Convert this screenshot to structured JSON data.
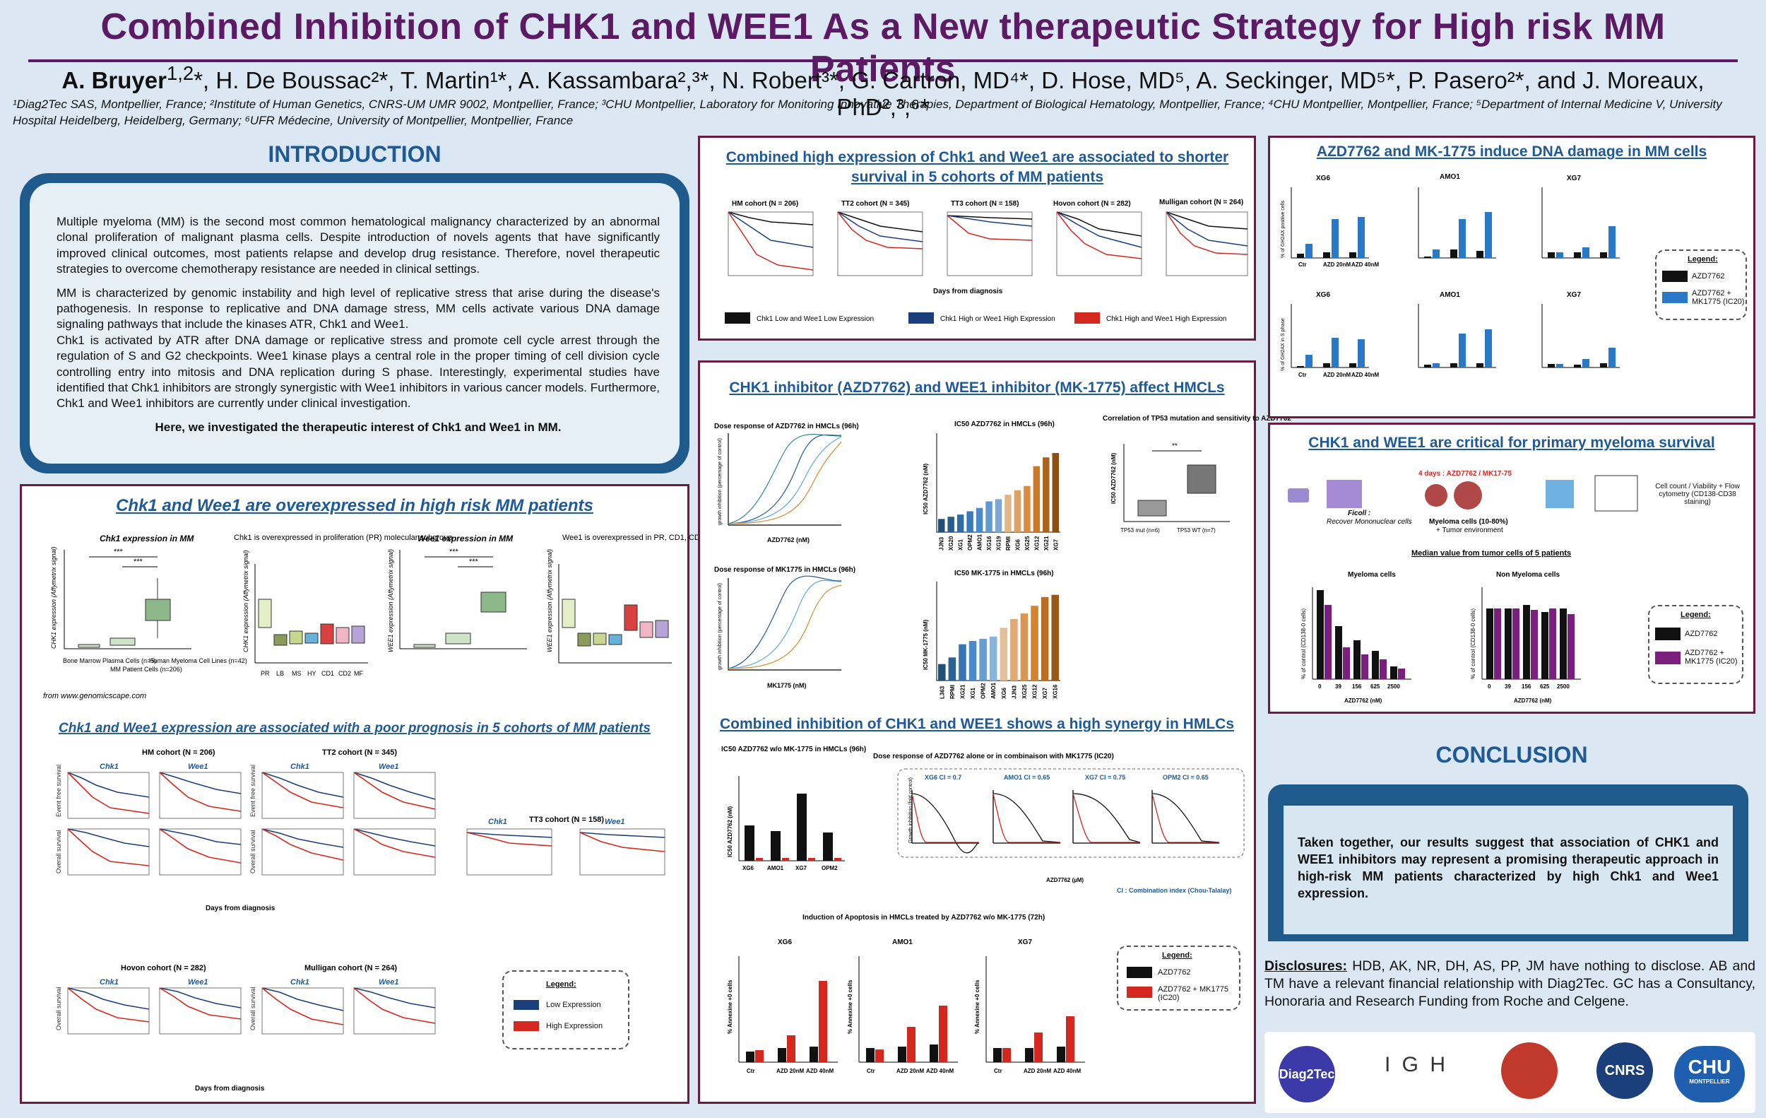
{
  "title": "Combined Inhibition of CHK1 and WEE1 As a New therapeutic Strategy for High risk MM Patients",
  "authors": {
    "first": "A. Bruyer",
    "first_sup": "1,2",
    "rest": "*, H. De Boussac²*, T. Martin¹*, A. Kassambara²,³*, N. Robert³*, G. Cartron, MD⁴*, D. Hose, MD⁵, A. Seckinger, MD⁵*, P. Pasero²*, and J. Moreaux, PhD²,³,⁶*"
  },
  "affiliations": "¹Diag2Tec SAS, Montpellier, France; ²Institute of Human Genetics, CNRS-UM UMR 9002, Montpellier, France; ³CHU Montpellier, Laboratory for Monitoring Innovative Therapies, Department of Biological Hematology, Montpellier, France; ⁴CHU Montpellier, Montpellier, France; ⁵Department of Internal Medicine V, University Hospital Heidelberg, Heidelberg, Germany; ⁶UFR Médecine, University of Montpellier, Montpellier, France",
  "intro": {
    "heading": "INTRODUCTION",
    "p1": "Multiple myeloma (MM) is the second most common hematological malignancy characterized by an abnormal clonal proliferation of malignant plasma cells. Despite introduction of novels agents that have significantly improved clinical outcomes, most patients relapse and develop drug resistance. Therefore, novel therapeutic strategies to overcome chemotherapy resistance are needed in clinical settings.",
    "p2": "MM is characterized by genomic instability and high level of replicative stress that arise during the disease's pathogenesis. In response to replicative and DNA damage stress, MM cells activate various DNA damage signaling pathways that include the kinases ATR, Chk1 and Wee1.",
    "p3": "Chk1 is activated by ATR after DNA damage or replicative stress and promote cell cycle arrest through the regulation of S and G2 checkpoints. Wee1 kinase plays a central role in the proper timing of cell division cycle controlling entry into mitosis and DNA replication during S phase. Interestingly, experimental studies have identified that Chk1 inhibitors are strongly synergistic with Wee1 inhibitors in various cancer models. Furthermore, Chk1 and Wee1 inhibitors are currently under clinical investigation.",
    "p4": "Here, we investigated the therapeutic interest of Chk1 and Wee1 in MM."
  },
  "overexpr": {
    "heading": "Chk1 and Wee1 are overexpressed in high risk MM patients",
    "plot1_title": "Chk1 expression in MM",
    "plot1_ylabel": "CHK1 expression (Affymetrix signal)",
    "plot1_cats": [
      "Bone Marrow Plasma Cells (n=5)",
      "MM Patient Cells (n=206)",
      "Human Myeloma Cell Lines (n=42)"
    ],
    "plot2_title": "Chk1 is overexpressed in proliferation (PR) molecular subgroup",
    "plot2_ylabel": "CHK1 expression (Affymetrix signal)",
    "plot3_title": "Wee1 expression in MM",
    "plot3_ylabel": "WEE1 expression (Affymetrix signal)",
    "plot4_title": "Wee1 is overexpressed in PR, CD1, CD2 and MF subgroups",
    "plot4_ylabel": "WEE1 expression (Affymetrix signal)",
    "subgroups": [
      "PR",
      "LB",
      "MS",
      "HY",
      "CD1",
      "CD2",
      "MF"
    ],
    "sig": "***",
    "source": "from www.genomicscape.com"
  },
  "prognosis": {
    "heading": "Chk1 and Wee1 expression are associated with a poor prognosis in 5 cohorts of MM patients",
    "hm": "HM cohort (N = 206)",
    "tt2": "TT2 cohort (N = 345)",
    "tt3": "TT3 cohort (N = 158)",
    "hovon": "Hovon cohort (N = 282)",
    "mulligan": "Mulligan cohort (N = 264)",
    "chk1": "Chk1",
    "wee1": "Wee1",
    "efs": "Event free survival",
    "os": "Overall survival",
    "xlabel": "Days from diagnosis",
    "legend_title": "Legend:",
    "legend_low": "Low Expression",
    "legend_high": "High Expression"
  },
  "combined": {
    "heading": "Combined high expression of Chk1 and Wee1 are associated to shorter survival in 5 cohorts of MM patients",
    "cohorts": [
      "HM cohort (N = 206)",
      "TT2 cohort (N = 345)",
      "TT3 cohort (N = 158)",
      "Hovon cohort (N = 282)",
      "Mulligan cohort (N = 264)"
    ],
    "xlabel": "Days from diagnosis",
    "leg1": "Chk1 Low and Wee1 Low Expression",
    "leg2": "Chk1 High or Wee1 High Expression",
    "leg3": "Chk1 High and Wee1 High Expression"
  },
  "inhib": {
    "heading": "CHK1 inhibitor (AZD7762) and WEE1 inhibitor (MK-1775) affect HMCLs",
    "dose1": "Dose response of AZD7762 in HMCLs (96h)",
    "dose2": "Dose response of MK1775 in HMCLs (96h)",
    "x1": "AZD7762 (nM)",
    "x2": "MK1775 (nM)",
    "yl": "growth inhibition (percentage of control)",
    "ic50_1": "IC50 AZD7762 in HMCLs (96h)",
    "ic50_2": "IC50 MK-1775 in HMCLs (96h)",
    "ic50_1_y": "IC50 AZD7762 (nM)",
    "ic50_2_y": "IC50 MK-1775 (nM)",
    "ic50_1_cats": [
      "JJN3",
      "XG20",
      "XG1",
      "OPM2",
      "AMO1",
      "XG16",
      "XG19",
      "RPMI",
      "XG6",
      "XG25",
      "XG12",
      "XG21",
      "XG7"
    ],
    "ic50_1_vals": [
      60,
      70,
      80,
      95,
      110,
      140,
      150,
      170,
      190,
      210,
      300,
      340,
      360
    ],
    "ic50_2_cats": [
      "L363",
      "RPMI",
      "XG21",
      "XG1",
      "OPM2",
      "AMO1",
      "XG6",
      "JJN3",
      "XG25",
      "XG12",
      "XG7",
      "XG16"
    ],
    "ic50_2_vals": [
      150,
      210,
      330,
      360,
      380,
      400,
      480,
      560,
      610,
      680,
      760,
      780
    ],
    "corr_title": "Correlation of TP53 mutation and sensitivity to AZD7762",
    "corr_y": "IC50 AZD7762 (nM)",
    "corr_cats": [
      "TP53 mut (n=6)",
      "TP53 WT (n=7)"
    ],
    "corr_sig": "**"
  },
  "synergy": {
    "heading": "Combined inhibition of CHK1 and WEE1 shows a high synergy in HMLCs",
    "ic50_title": "IC50 AZD7762 w/o MK-1775 in HMCLs (96h)",
    "ic50_y": "IC50 AZD7762 (nM)",
    "cells": [
      "XG6",
      "AMO1",
      "XG7",
      "OPM2"
    ],
    "dose_title": "Dose response of AZD7762 alone or in combinaison with MK1775 (IC20)",
    "ci": [
      "XG6 CI = 0.7",
      "AMO1 CI = 0.65",
      "XG7 CI = 0.75",
      "OPM2 CI = 0.65"
    ],
    "dose_x": "AZD7762 (µM)",
    "dose_y": "Growth inhibition (fold control)",
    "ci_note": "CI : Combination index (Chou-Talalay)",
    "apop_title": "Induction of Apoptosis in HMCLs treated by AZD7762 w/o MK-1775 (72h)",
    "apop_y": "% Annexine +0 cells",
    "apop_cells": [
      "XG6",
      "AMO1",
      "XG7"
    ],
    "apop_x": [
      "Ctr",
      "AZD 20nM",
      "AZD 40nM"
    ],
    "legend_title": "Legend:",
    "leg1": "AZD7762",
    "leg2": "AZD7762 + MK1775 (IC20)"
  },
  "dna": {
    "heading": "AZD7762 and MK-1775 induce DNA damage in MM cells",
    "cells": [
      "XG6",
      "AMO1",
      "XG7"
    ],
    "y1": "% of GH2AX positive cells",
    "y2": "% of GH2AX in S phase",
    "xcats": [
      "Ctr",
      "AZD 20nM",
      "AZD 40nM"
    ],
    "legend_title": "Legend:",
    "leg1": "AZD7762",
    "leg2": "AZD7762 + MK1775 (IC20)"
  },
  "primary": {
    "heading": "CHK1 and WEE1 are critical for primary myeloma survival",
    "days": "4 days : AZD7762 / MK17-75",
    "ficoll": "Ficoll :",
    "recover": "Recover Mononuclear cells",
    "myeloma": "Myeloma cells (10-80%)",
    "tumor": "+ Tumor environment",
    "count": "Cell count / Viability + Flow cytometry (CD138-CD38 staining)",
    "median": "Median value from tumor cells of 5 patients",
    "mye": "Myeloma cells",
    "nonmye": "Non Myeloma cells",
    "y": "% of control (CD138-0 cells)",
    "x": "AZD7762 (nM)",
    "doses": [
      "0",
      "39",
      "156",
      "625",
      "2500"
    ],
    "legend_title": "Legend:",
    "leg1": "AZD7762",
    "leg2": "AZD7762 + MK1775 (IC20)"
  },
  "conclusion": {
    "heading": "CONCLUSION",
    "text": "Taken together, our results suggest that association of CHK1 and WEE1 inhibitors may represent a promising therapeutic approach in high-risk MM patients characterized by high Chk1 and Wee1 expression."
  },
  "disclosures": {
    "label": "Disclosures:",
    "text": "HDB, AK, NR, DH, AS, PP, JM have nothing to disclose. AB and TM have a relevant financial relationship with Diag2Tec. GC has a Consultancy, Honoraria and Research Funding from Roche and Celgene."
  },
  "logos": {
    "diag": "Diag2Tec",
    "igh": "I G H",
    "cnrs": "CNRS",
    "chu": "CHU",
    "chu_sub": "MONTPELLIER"
  },
  "colors": {
    "title": "#5b1a63",
    "heading": "#1f5a96",
    "border": "#6b1a40",
    "blue": "#1b3f7a",
    "red": "#d4281f",
    "purple": "#7a1f7e"
  }
}
